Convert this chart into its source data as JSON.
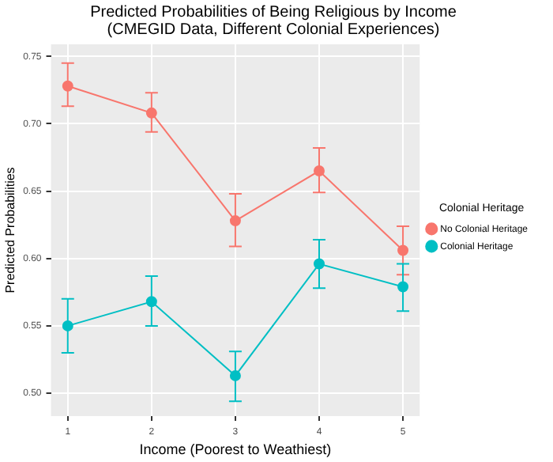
{
  "chart_data": {
    "type": "line",
    "title": [
      "Predicted Probabilities of Being Religious by Income",
      "(CMEGID Data, Different Colonial Experiences)"
    ],
    "xlabel": "Income (Poorest to Weathiest)",
    "ylabel": "Predicted Probabilities",
    "legend_title": "Colonial Heritage",
    "x": [
      1,
      2,
      3,
      4,
      5
    ],
    "xlim": [
      0.8,
      5.2
    ],
    "xticks": [
      1,
      2,
      3,
      4,
      5
    ],
    "ylim": [
      0.483,
      0.759
    ],
    "yticks": [
      {
        "value": 0.5,
        "label": "0.50"
      },
      {
        "value": 0.55,
        "label": "0.55"
      },
      {
        "value": 0.6,
        "label": "0.60"
      },
      {
        "value": 0.65,
        "label": "0.65"
      },
      {
        "value": 0.7,
        "label": "0.70"
      },
      {
        "value": 0.75,
        "label": "0.75"
      }
    ],
    "grid": true,
    "legend": "right",
    "marker": "circle",
    "series": [
      {
        "name": "No Colonial Heritage",
        "color": "#f8766d",
        "values": [
          0.728,
          0.708,
          0.628,
          0.665,
          0.606
        ],
        "errors": [
          [
            0.713,
            0.745
          ],
          [
            0.694,
            0.723
          ],
          [
            0.609,
            0.648
          ],
          [
            0.649,
            0.682
          ],
          [
            0.588,
            0.624
          ]
        ]
      },
      {
        "name": "Colonial Heritage",
        "color": "#00bfc4",
        "values": [
          0.55,
          0.568,
          0.513,
          0.596,
          0.579
        ],
        "errors": [
          [
            0.53,
            0.57
          ],
          [
            0.55,
            0.587
          ],
          [
            0.494,
            0.531
          ],
          [
            0.578,
            0.614
          ],
          [
            0.561,
            0.596
          ]
        ]
      }
    ]
  }
}
